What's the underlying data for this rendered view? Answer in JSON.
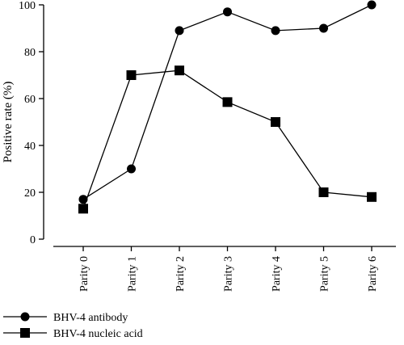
{
  "chart_data": {
    "type": "line",
    "title": "",
    "xlabel": "",
    "ylabel": "Positive rate (%)",
    "ylim": [
      0,
      100
    ],
    "yticks": [
      0,
      20,
      40,
      60,
      80,
      100
    ],
    "categories": [
      "Parity 0",
      "Parity 1",
      "Parity 2",
      "Parity 3",
      "Parity 4",
      "Parity 5",
      "Parity 6"
    ],
    "grid": false,
    "legend_position": "bottom-left",
    "series": [
      {
        "name": "BHV-4 antibody",
        "marker": "circle",
        "color": "#000000",
        "values": [
          17,
          30,
          89,
          97,
          89,
          90,
          100
        ]
      },
      {
        "name": "BHV-4 nucleic acid",
        "marker": "square",
        "color": "#000000",
        "values": [
          13,
          70,
          72,
          58.5,
          50,
          20,
          18
        ]
      }
    ]
  }
}
